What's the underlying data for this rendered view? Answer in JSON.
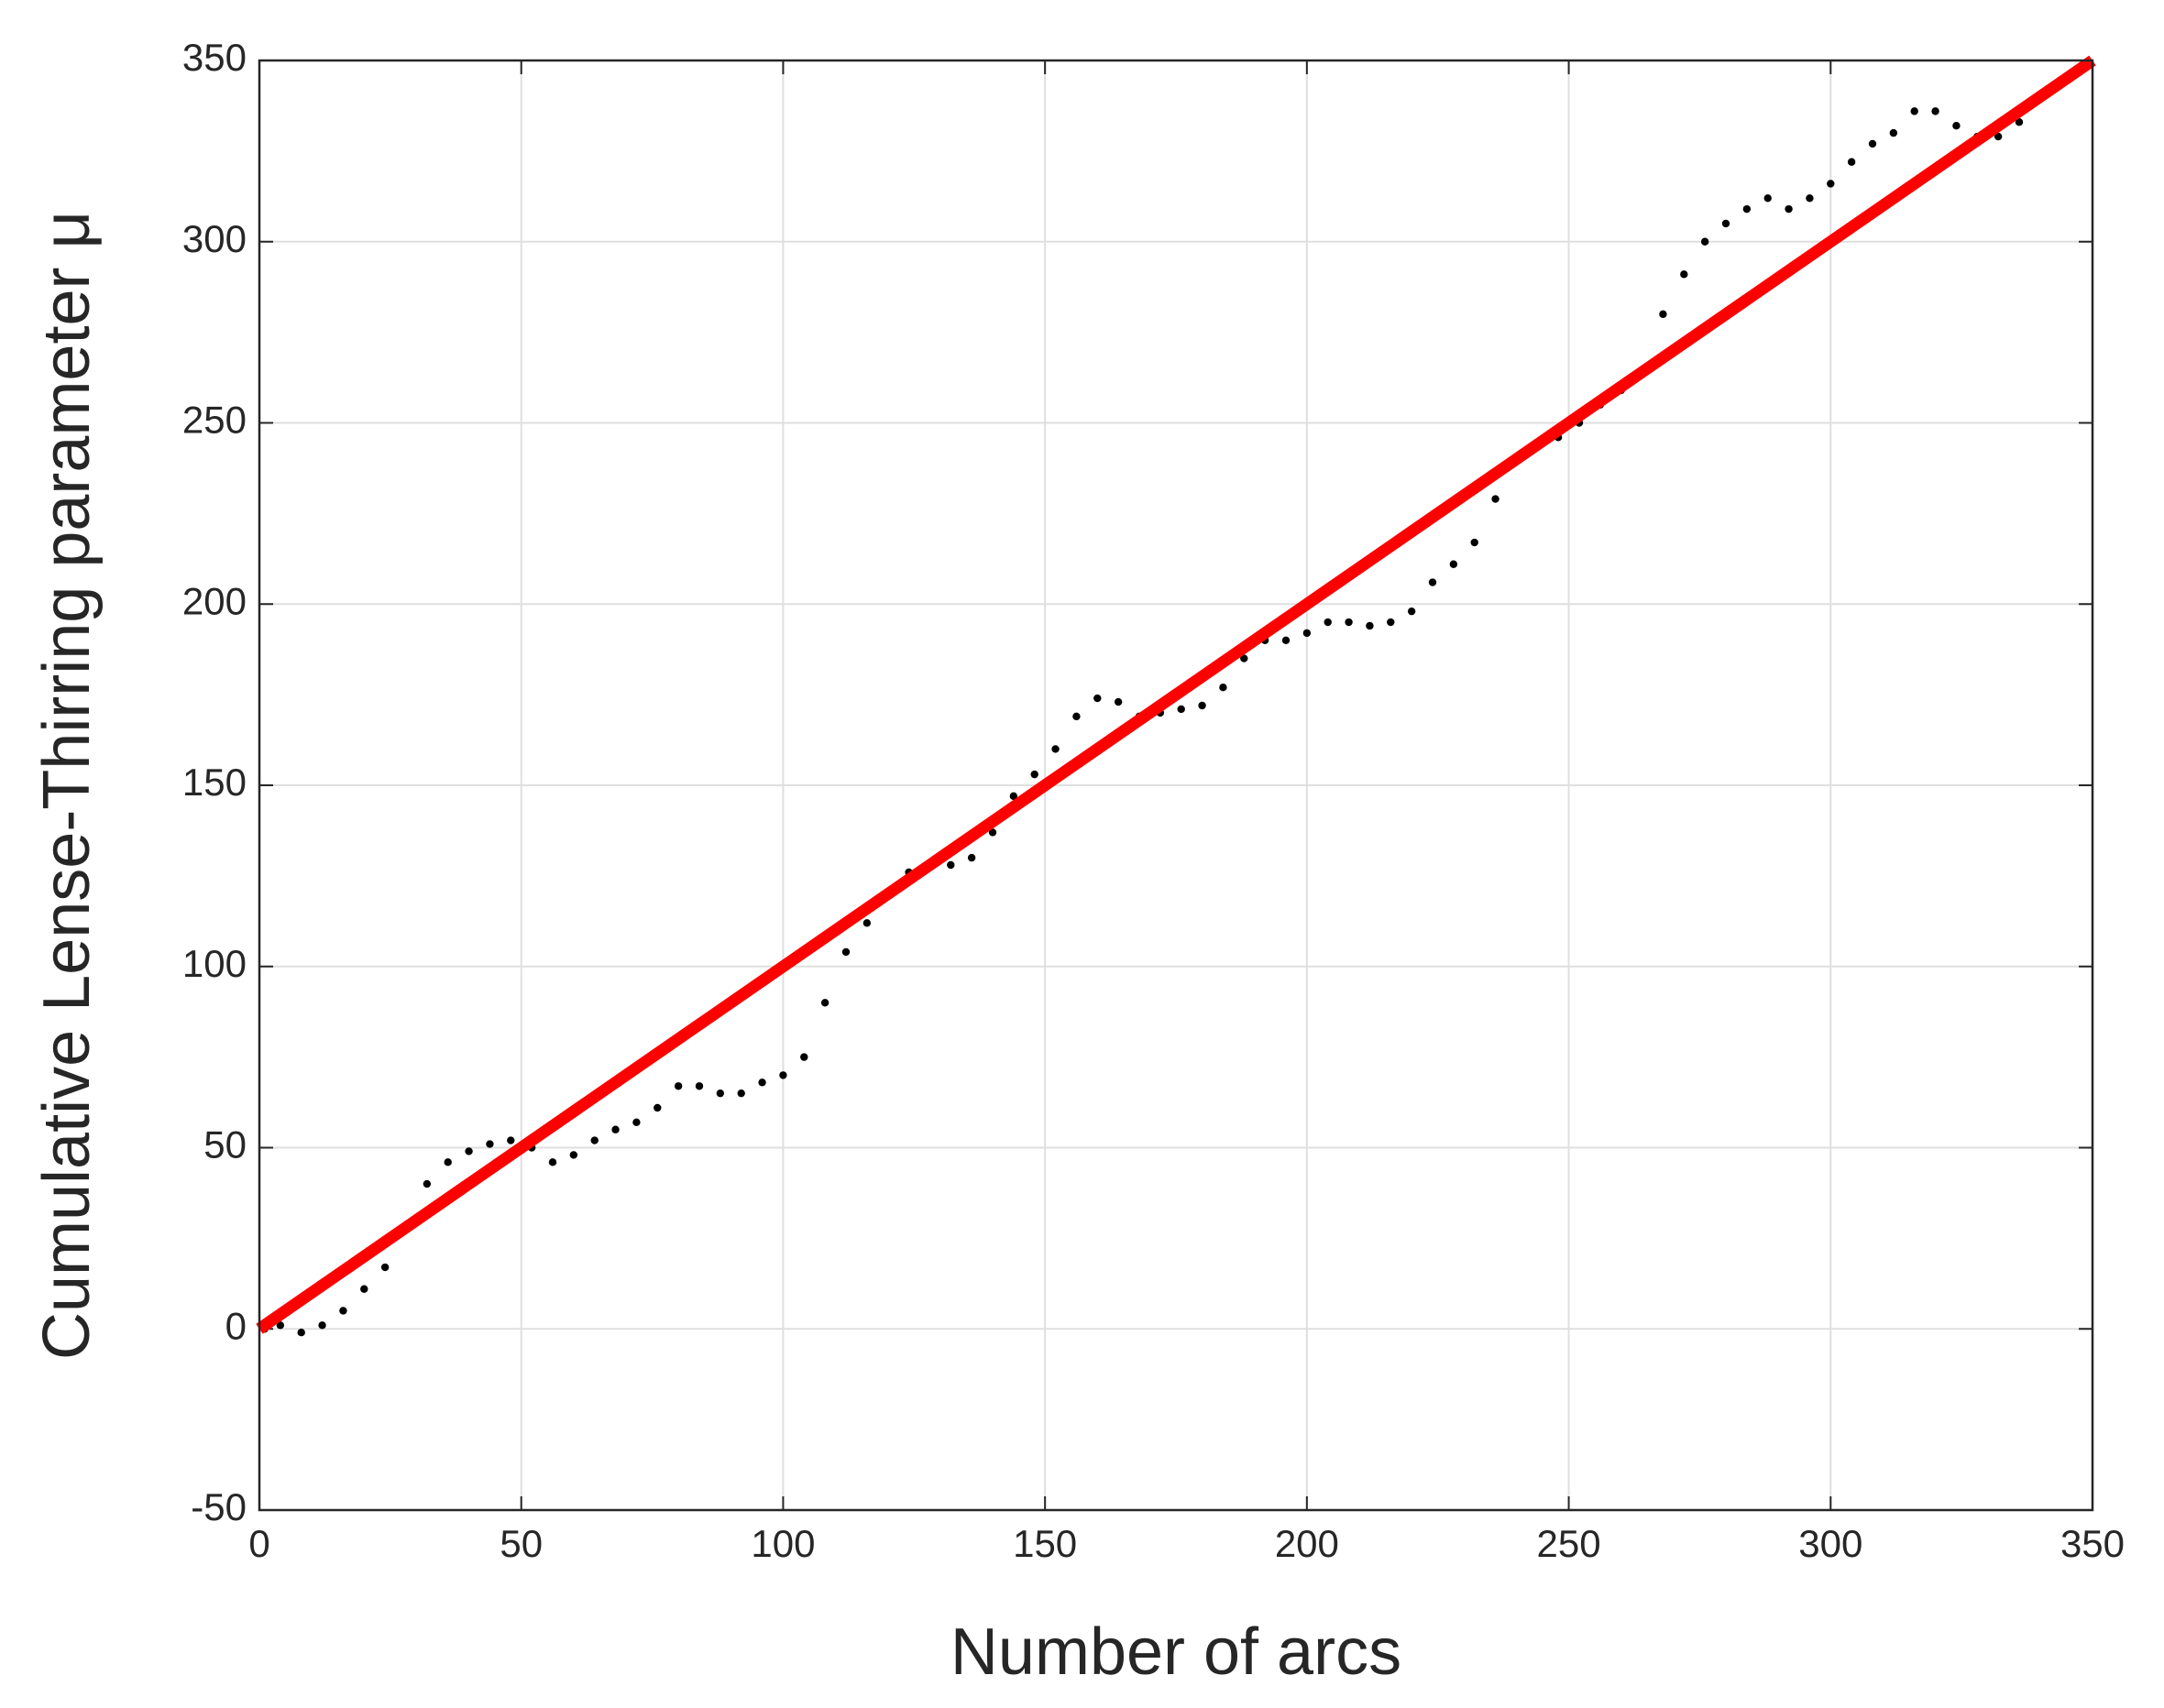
{
  "chart_data": {
    "type": "scatter",
    "xlabel": "Number of arcs",
    "ylabel": "Cumulative Lense-Thirring parameter μ",
    "xlim": [
      0,
      350
    ],
    "ylim": [
      -50,
      350
    ],
    "xticks": [
      0,
      50,
      100,
      150,
      200,
      250,
      300,
      350
    ],
    "yticks": [
      -50,
      0,
      50,
      100,
      150,
      200,
      250,
      300,
      350
    ],
    "grid": true,
    "series": [
      {
        "color": "#000000",
        "style": "dots",
        "x": [
          1,
          4,
          8,
          12,
          16,
          20,
          24,
          28,
          32,
          36,
          40,
          44,
          48,
          52,
          56,
          60,
          64,
          68,
          72,
          76,
          80,
          84,
          88,
          92,
          96,
          100,
          104,
          108,
          112,
          116,
          120,
          124,
          128,
          132,
          136,
          140,
          144,
          148,
          152,
          156,
          160,
          164,
          168,
          172,
          176,
          180,
          184,
          188,
          192,
          196,
          200,
          204,
          208,
          212,
          216,
          220,
          224,
          228,
          232,
          236,
          240,
          244,
          248,
          252,
          256,
          260,
          264,
          268,
          272,
          276,
          280,
          284,
          288,
          292,
          296,
          300,
          304,
          308,
          312,
          316,
          320,
          324,
          328,
          332,
          336
        ],
        "values": [
          0,
          1,
          -1,
          1,
          5,
          11,
          17,
          28,
          40,
          46,
          49,
          51,
          52,
          50,
          46,
          48,
          52,
          55,
          57,
          61,
          67,
          67,
          65,
          65,
          68,
          70,
          75,
          90,
          104,
          112,
          120,
          126,
          128,
          128,
          130,
          137,
          147,
          153,
          160,
          169,
          174,
          173,
          169,
          170,
          171,
          172,
          177,
          185,
          190,
          190,
          192,
          195,
          195,
          194,
          195,
          198,
          206,
          211,
          217,
          229,
          240,
          244,
          246,
          250,
          255,
          259,
          264,
          280,
          291,
          300,
          305,
          309,
          312,
          309,
          312,
          316,
          322,
          327,
          330,
          336,
          336,
          332,
          329,
          329,
          333
        ]
      },
      {
        "color": "#ff0000",
        "style": "line",
        "x": [
          0,
          350
        ],
        "values": [
          0,
          350
        ]
      }
    ]
  }
}
